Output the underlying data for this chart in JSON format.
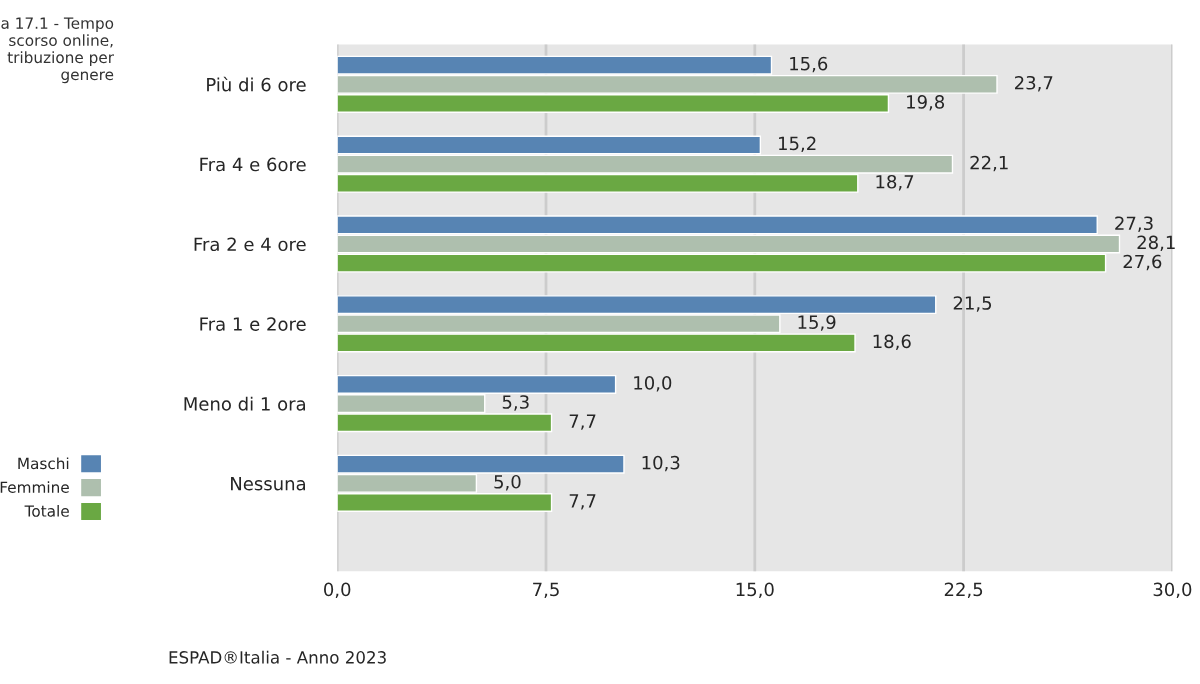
{
  "chart_data": {
    "type": "bar",
    "orientation": "horizontal",
    "title": "a 17.1 - Tempo\nscorso online,\ntribuzione per\ngenere",
    "categories": [
      "Più di 6 ore",
      "Fra 4 e 6ore",
      "Fra 2 e 4 ore",
      "Fra 1 e 2ore",
      "Meno di 1 ora",
      "Nessuna"
    ],
    "series": [
      {
        "name": "Maschi",
        "color": "#5784b3",
        "values": [
          15.6,
          15.2,
          27.3,
          21.5,
          10.0,
          10.3
        ],
        "value_labels": [
          "15,6",
          "15,2",
          "27,3",
          "21,5",
          "10,0",
          "10,3"
        ]
      },
      {
        "name": "Femmine",
        "color": "#aebfae",
        "values": [
          23.7,
          22.1,
          28.1,
          15.9,
          5.3,
          5.0
        ],
        "value_labels": [
          "23,7",
          "22,1",
          "28,1",
          "15,9",
          "5,3",
          "5,0"
        ]
      },
      {
        "name": "Totale",
        "color": "#6aa843",
        "values": [
          19.8,
          18.7,
          27.6,
          18.6,
          7.7,
          7.7
        ],
        "value_labels": [
          "19,8",
          "18,7",
          "27,6",
          "18,6",
          "7,7",
          "7,7"
        ]
      }
    ],
    "xlim": [
      0,
      30
    ],
    "xticks": [
      {
        "value": 0,
        "label": "0,0"
      },
      {
        "value": 7.5,
        "label": "7,5"
      },
      {
        "value": 15,
        "label": "15,0"
      },
      {
        "value": 22.5,
        "label": "22,5"
      },
      {
        "value": 30,
        "label": "30,0"
      }
    ],
    "grid": "x",
    "legend": "left",
    "annotations": [
      "ESPAD®Italia - Anno 2023"
    ]
  }
}
